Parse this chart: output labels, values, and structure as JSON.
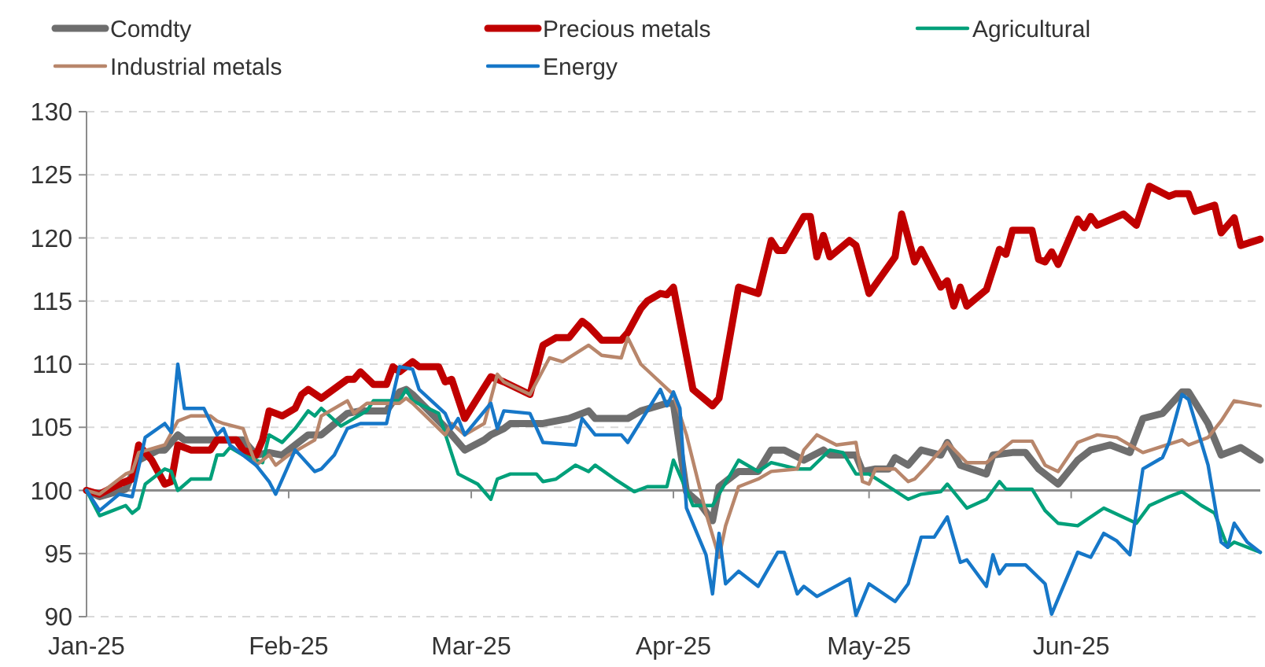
{
  "chart_data": {
    "type": "line",
    "xlim": [
      "2025-01-01",
      "2025-06-30"
    ],
    "xticks": [
      {
        "value": "2025-01-01",
        "label": "Jan-25"
      },
      {
        "value": "2025-02-01",
        "label": "Feb-25"
      },
      {
        "value": "2025-03-01",
        "label": "Mar-25"
      },
      {
        "value": "2025-04-01",
        "label": "Apr-25"
      },
      {
        "value": "2025-05-01",
        "label": "May-25"
      },
      {
        "value": "2025-06-01",
        "label": "Jun-25"
      }
    ],
    "ylim": [
      90,
      130
    ],
    "yticks": [
      90,
      95,
      100,
      105,
      110,
      115,
      120,
      125,
      130
    ],
    "grid": "y",
    "legend": "top",
    "marker": "none",
    "line_style": "solid",
    "ref_lines": [
      {
        "axis": "y",
        "value": 100,
        "color": "#8c8c8c"
      }
    ],
    "series": [
      {
        "name": "Comdty",
        "color": "#6e6e6e",
        "x": [
          "2025-01-01",
          "2025-01-03",
          "2025-01-07",
          "2025-01-09",
          "2025-01-12",
          "2025-01-13",
          "2025-01-15",
          "2025-01-16",
          "2025-01-20",
          "2025-01-25",
          "2025-01-27",
          "2025-01-29",
          "2025-01-31",
          "2025-02-04",
          "2025-02-06",
          "2025-02-10",
          "2025-02-12",
          "2025-02-16",
          "2025-02-18",
          "2025-02-19",
          "2025-02-20",
          "2025-02-25",
          "2025-02-28",
          "2025-03-03",
          "2025-03-04",
          "2025-03-06",
          "2025-03-07",
          "2025-03-12",
          "2025-03-16",
          "2025-03-19",
          "2025-03-20",
          "2025-03-25",
          "2025-03-27",
          "2025-03-31",
          "2025-04-01",
          "2025-04-03",
          "2025-04-05",
          "2025-04-07",
          "2025-04-08",
          "2025-04-11",
          "2025-04-14",
          "2025-04-16",
          "2025-04-18",
          "2025-04-21",
          "2025-04-24",
          "2025-04-25",
          "2025-04-29",
          "2025-04-30",
          "2025-05-02",
          "2025-05-04",
          "2025-05-05",
          "2025-05-07",
          "2025-05-09",
          "2025-05-12",
          "2025-05-13",
          "2025-05-15",
          "2025-05-19",
          "2025-05-20",
          "2025-05-23",
          "2025-05-25",
          "2025-05-27",
          "2025-05-30",
          "2025-06-02",
          "2025-06-04",
          "2025-06-07",
          "2025-06-10",
          "2025-06-12",
          "2025-06-15",
          "2025-06-18",
          "2025-06-19",
          "2025-06-22",
          "2025-06-24",
          "2025-06-27",
          "2025-06-30"
        ],
        "values": [
          100,
          99.5,
          100.1,
          102.4,
          103.2,
          103.2,
          104.4,
          104,
          104,
          104,
          102.8,
          103,
          102.8,
          104.4,
          104.4,
          106.1,
          106.3,
          106.3,
          107.8,
          108,
          107.6,
          105,
          103.2,
          104,
          104.4,
          104.9,
          105.3,
          105.3,
          105.7,
          106.3,
          105.7,
          105.7,
          106.3,
          106.9,
          106.9,
          99.9,
          99,
          97.6,
          100.3,
          101.5,
          101.5,
          103.2,
          103.2,
          102.4,
          103.2,
          102.8,
          102.8,
          101.5,
          101.7,
          101.7,
          102.6,
          102,
          103.2,
          102.8,
          103.8,
          102,
          101.3,
          102.8,
          103,
          103,
          101.7,
          100.5,
          102.4,
          103.2,
          103.6,
          103,
          105.7,
          106.1,
          107.8,
          107.8,
          105.3,
          102.8,
          103.4,
          102.4
        ]
      },
      {
        "name": "Precious metals",
        "color": "#c00000",
        "x": [
          "2025-01-01",
          "2025-01-03",
          "2025-01-06",
          "2025-01-08",
          "2025-01-09",
          "2025-01-11",
          "2025-01-13",
          "2025-01-14",
          "2025-01-15",
          "2025-01-17",
          "2025-01-20",
          "2025-01-21",
          "2025-01-24",
          "2025-01-25",
          "2025-01-27",
          "2025-01-28",
          "2025-01-29",
          "2025-01-31",
          "2025-02-02",
          "2025-02-03",
          "2025-02-04",
          "2025-02-06",
          "2025-02-10",
          "2025-02-11",
          "2025-02-12",
          "2025-02-14",
          "2025-02-16",
          "2025-02-17",
          "2025-02-18",
          "2025-02-20",
          "2025-02-21",
          "2025-02-24",
          "2025-02-25",
          "2025-02-26",
          "2025-02-28",
          "2025-03-04",
          "2025-03-06",
          "2025-03-10",
          "2025-03-12",
          "2025-03-14",
          "2025-03-16",
          "2025-03-18",
          "2025-03-19",
          "2025-03-21",
          "2025-03-24",
          "2025-03-25",
          "2025-03-27",
          "2025-03-28",
          "2025-03-30",
          "2025-03-31",
          "2025-04-01",
          "2025-04-04",
          "2025-04-07",
          "2025-04-08",
          "2025-04-11",
          "2025-04-14",
          "2025-04-16",
          "2025-04-17",
          "2025-04-18",
          "2025-04-21",
          "2025-04-22",
          "2025-04-23",
          "2025-04-24",
          "2025-04-25",
          "2025-04-28",
          "2025-04-29",
          "2025-05-01",
          "2025-05-05",
          "2025-05-06",
          "2025-05-08",
          "2025-05-09",
          "2025-05-12",
          "2025-05-13",
          "2025-05-14",
          "2025-05-15",
          "2025-05-16",
          "2025-05-19",
          "2025-05-21",
          "2025-05-22",
          "2025-05-23",
          "2025-05-26",
          "2025-05-27",
          "2025-05-28",
          "2025-05-29",
          "2025-05-30",
          "2025-06-02",
          "2025-06-03",
          "2025-06-04",
          "2025-06-05",
          "2025-06-09",
          "2025-06-11",
          "2025-06-13",
          "2025-06-16",
          "2025-06-17",
          "2025-06-19",
          "2025-06-20",
          "2025-06-23",
          "2025-06-24",
          "2025-06-26",
          "2025-06-27",
          "2025-06-30"
        ],
        "values": [
          100,
          99.7,
          100.5,
          100.9,
          103.6,
          102.4,
          100.5,
          100.7,
          103.6,
          103.2,
          103.2,
          104,
          104,
          103.2,
          102.8,
          104,
          106.3,
          105.9,
          106.5,
          107.6,
          108,
          107.3,
          108.8,
          108.8,
          109.4,
          108.4,
          108.4,
          109.8,
          109.4,
          110.2,
          109.8,
          109.8,
          108.6,
          108.8,
          105.7,
          109,
          108.6,
          107.6,
          111.5,
          112.1,
          112.1,
          113.4,
          113,
          111.9,
          111.9,
          112.5,
          114.4,
          115,
          115.6,
          115.5,
          116.1,
          108,
          106.7,
          107.3,
          116.1,
          115.6,
          119.8,
          119,
          119,
          121.7,
          121.7,
          118.5,
          120.2,
          118.5,
          119.8,
          119.4,
          115.6,
          118.5,
          121.9,
          118.1,
          119.1,
          116.1,
          116.6,
          114.6,
          116.1,
          114.6,
          115.9,
          119.1,
          118.7,
          120.6,
          120.6,
          118.3,
          118.1,
          118.9,
          117.9,
          121.5,
          120.8,
          121.7,
          121,
          121.9,
          121,
          124.1,
          123.3,
          123.5,
          123.5,
          122.1,
          122.6,
          120.4,
          121.6,
          119.4,
          119.9
        ]
      },
      {
        "name": "Agricultural",
        "color": "#00a07a",
        "x": [
          "2025-01-01",
          "2025-01-03",
          "2025-01-07",
          "2025-01-08",
          "2025-01-09",
          "2025-01-10",
          "2025-01-13",
          "2025-01-14",
          "2025-01-15",
          "2025-01-17",
          "2025-01-20",
          "2025-01-21",
          "2025-01-22",
          "2025-01-23",
          "2025-01-25",
          "2025-01-28",
          "2025-01-29",
          "2025-01-31",
          "2025-02-02",
          "2025-02-04",
          "2025-02-05",
          "2025-02-06",
          "2025-02-09",
          "2025-02-13",
          "2025-02-14",
          "2025-02-18",
          "2025-02-19",
          "2025-02-20",
          "2025-02-24",
          "2025-02-27",
          "2025-03-02",
          "2025-03-04",
          "2025-03-05",
          "2025-03-07",
          "2025-03-11",
          "2025-03-12",
          "2025-03-14",
          "2025-03-17",
          "2025-03-19",
          "2025-03-20",
          "2025-03-23",
          "2025-03-26",
          "2025-03-28",
          "2025-03-31",
          "2025-04-01",
          "2025-04-04",
          "2025-04-07",
          "2025-04-11",
          "2025-04-14",
          "2025-04-16",
          "2025-04-20",
          "2025-04-22",
          "2025-04-25",
          "2025-04-27",
          "2025-04-29",
          "2025-05-01",
          "2025-05-07",
          "2025-05-09",
          "2025-05-12",
          "2025-05-13",
          "2025-05-16",
          "2025-05-19",
          "2025-05-21",
          "2025-05-22",
          "2025-05-26",
          "2025-05-28",
          "2025-05-30",
          "2025-06-02",
          "2025-06-06",
          "2025-06-11",
          "2025-06-13",
          "2025-06-16",
          "2025-06-18",
          "2025-06-21",
          "2025-06-23",
          "2025-06-25",
          "2025-06-26",
          "2025-06-30"
        ],
        "values": [
          100,
          98,
          98.8,
          98.2,
          98.6,
          100.5,
          101.7,
          101.5,
          100,
          100.9,
          100.9,
          102.8,
          102.8,
          103.4,
          102.8,
          102.2,
          104.4,
          103.8,
          104.9,
          106.3,
          105.9,
          106.5,
          105.1,
          106.3,
          107.1,
          107.1,
          108,
          107.1,
          106.1,
          101.3,
          100.5,
          99.3,
          100.9,
          101.3,
          101.3,
          100.7,
          100.9,
          102,
          101.5,
          102,
          100.9,
          99.9,
          100.3,
          100.3,
          102.4,
          98.8,
          98.8,
          102.4,
          101.5,
          102.2,
          101.7,
          101.7,
          103.2,
          103,
          101.3,
          101.3,
          99.3,
          99.7,
          99.9,
          100.5,
          98.6,
          99.3,
          100.7,
          100.1,
          100.1,
          98.4,
          97.4,
          97.2,
          98.6,
          97.4,
          98.8,
          99.5,
          99.9,
          98.8,
          98.2,
          95.5,
          95.9,
          95.1
        ]
      },
      {
        "name": "Industrial metals",
        "color": "#b8866b",
        "x": [
          "2025-01-01",
          "2025-01-03",
          "2025-01-07",
          "2025-01-08",
          "2025-01-09",
          "2025-01-13",
          "2025-01-15",
          "2025-01-17",
          "2025-01-20",
          "2025-01-21",
          "2025-01-22",
          "2025-01-25",
          "2025-01-27",
          "2025-01-29",
          "2025-01-30",
          "2025-02-01",
          "2025-02-05",
          "2025-02-06",
          "2025-02-10",
          "2025-02-11",
          "2025-02-13",
          "2025-02-18",
          "2025-02-19",
          "2025-02-20",
          "2025-02-25",
          "2025-02-26",
          "2025-02-28",
          "2025-03-03",
          "2025-03-05",
          "2025-03-06",
          "2025-03-10",
          "2025-03-13",
          "2025-03-15",
          "2025-03-19",
          "2025-03-21",
          "2025-03-24",
          "2025-03-25",
          "2025-03-27",
          "2025-04-01",
          "2025-04-03",
          "2025-04-06",
          "2025-04-08",
          "2025-04-09",
          "2025-04-11",
          "2025-04-14",
          "2025-04-16",
          "2025-04-20",
          "2025-04-21",
          "2025-04-23",
          "2025-04-26",
          "2025-04-29",
          "2025-04-30",
          "2025-05-01",
          "2025-05-02",
          "2025-05-05",
          "2025-05-07",
          "2025-05-08",
          "2025-05-10",
          "2025-05-13",
          "2025-05-16",
          "2025-05-19",
          "2025-05-23",
          "2025-05-26",
          "2025-05-28",
          "2025-05-30",
          "2025-06-02",
          "2025-06-05",
          "2025-06-08",
          "2025-06-12",
          "2025-06-18",
          "2025-06-19",
          "2025-06-22",
          "2025-06-24",
          "2025-06-26",
          "2025-06-30"
        ],
        "values": [
          100,
          99.7,
          101.3,
          101.5,
          103,
          103.6,
          105.5,
          105.9,
          105.9,
          105.5,
          105.3,
          104.9,
          102,
          102.8,
          102,
          102.8,
          104,
          105.9,
          107.1,
          106.1,
          106.9,
          106.9,
          107.3,
          106.9,
          104.4,
          105.3,
          104.4,
          105.3,
          109.2,
          108.6,
          107.6,
          110.5,
          110.2,
          111.5,
          110.7,
          110.5,
          112.1,
          110,
          107.6,
          104.4,
          98.2,
          94.7,
          97.2,
          100.3,
          100.9,
          101.5,
          101.7,
          103.2,
          104.4,
          103.6,
          103.8,
          100.7,
          100.5,
          101.7,
          101.7,
          100.7,
          100.9,
          102,
          103.8,
          102.2,
          102.2,
          103.9,
          103.9,
          102,
          101.5,
          103.8,
          104.4,
          104.2,
          103,
          104,
          103.6,
          104.2,
          105.5,
          107.1,
          106.7
        ]
      },
      {
        "name": "Energy",
        "color": "#1677c8",
        "x": [
          "2025-01-01",
          "2025-01-03",
          "2025-01-06",
          "2025-01-08",
          "2025-01-10",
          "2025-01-13",
          "2025-01-14",
          "2025-01-15",
          "2025-01-16",
          "2025-01-19",
          "2025-01-21",
          "2025-01-22",
          "2025-01-23",
          "2025-01-27",
          "2025-01-29",
          "2025-01-30",
          "2025-02-02",
          "2025-02-05",
          "2025-02-06",
          "2025-02-08",
          "2025-02-10",
          "2025-02-12",
          "2025-02-16",
          "2025-02-18",
          "2025-02-20",
          "2025-02-21",
          "2025-02-25",
          "2025-02-26",
          "2025-02-27",
          "2025-02-28",
          "2025-03-04",
          "2025-03-05",
          "2025-03-06",
          "2025-03-10",
          "2025-03-12",
          "2025-03-17",
          "2025-03-18",
          "2025-03-20",
          "2025-03-24",
          "2025-03-25",
          "2025-03-30",
          "2025-03-31",
          "2025-04-01",
          "2025-04-02",
          "2025-04-03",
          "2025-04-06",
          "2025-04-07",
          "2025-04-08",
          "2025-04-09",
          "2025-04-11",
          "2025-04-14",
          "2025-04-17",
          "2025-04-18",
          "2025-04-20",
          "2025-04-21",
          "2025-04-23",
          "2025-04-28",
          "2025-04-29",
          "2025-05-01",
          "2025-05-05",
          "2025-05-07",
          "2025-05-09",
          "2025-05-11",
          "2025-05-13",
          "2025-05-15",
          "2025-05-16",
          "2025-05-19",
          "2025-05-20",
          "2025-05-21",
          "2025-05-22",
          "2025-05-25",
          "2025-05-28",
          "2025-05-29",
          "2025-06-02",
          "2025-06-04",
          "2025-06-06",
          "2025-06-08",
          "2025-06-10",
          "2025-06-12",
          "2025-06-15",
          "2025-06-16",
          "2025-06-18",
          "2025-06-19",
          "2025-06-22",
          "2025-06-24",
          "2025-06-25",
          "2025-06-26",
          "2025-06-28",
          "2025-06-30"
        ],
        "values": [
          100,
          98.4,
          99.7,
          99.5,
          104.2,
          105.3,
          104.6,
          110,
          106.5,
          106.5,
          104.4,
          104.9,
          103.6,
          102,
          100.7,
          99.7,
          103.2,
          101.5,
          101.7,
          102.8,
          104.9,
          105.3,
          105.3,
          109.8,
          109.6,
          108,
          106.1,
          104.9,
          105.7,
          104.4,
          106.9,
          104.9,
          106.3,
          106.1,
          103.8,
          103.6,
          105.7,
          104.4,
          104.4,
          103.8,
          108,
          106.7,
          107.8,
          106.5,
          98.6,
          94.9,
          91.8,
          96.6,
          92.6,
          93.6,
          92.4,
          95.1,
          95.1,
          91.8,
          92.4,
          91.6,
          93,
          90.1,
          92.6,
          91.2,
          92.6,
          96.3,
          96.3,
          97.9,
          94.3,
          94.5,
          92.4,
          94.9,
          93.4,
          94.1,
          94.1,
          92.6,
          90.2,
          95.1,
          94.7,
          96.6,
          96,
          94.9,
          101.7,
          102.6,
          103.8,
          107.6,
          107.2,
          102,
          95.9,
          95.5,
          97.4,
          95.9,
          95.1
        ]
      }
    ]
  }
}
